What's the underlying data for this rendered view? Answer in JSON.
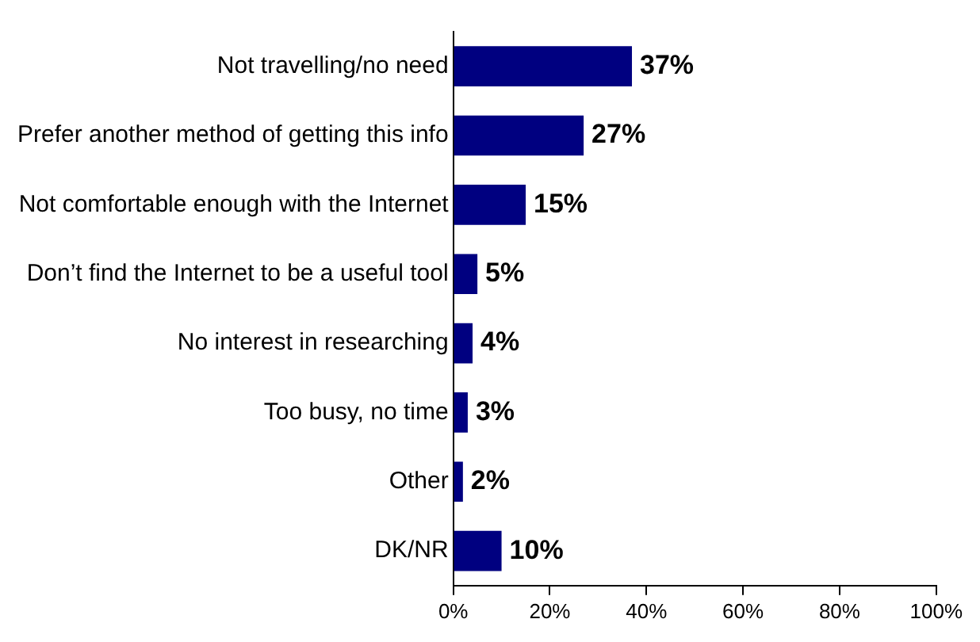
{
  "chart_data": {
    "type": "bar",
    "orientation": "horizontal",
    "categories": [
      "Not travelling/no need",
      "Prefer another method of getting this info",
      "Not comfortable enough with the Internet",
      "Don’t find the Internet to be a useful tool",
      "No interest in researching",
      "Too busy, no time",
      "Other",
      "DK/NR"
    ],
    "values": [
      37,
      27,
      15,
      5,
      4,
      3,
      2,
      10
    ],
    "value_labels": [
      "37%",
      "27%",
      "15%",
      "5%",
      "4%",
      "3%",
      "2%",
      "10%"
    ],
    "color": "#000080",
    "xlim": [
      0,
      100
    ],
    "xticks": [
      {
        "value": 0,
        "label": "0%"
      },
      {
        "value": 20,
        "label": "20%"
      },
      {
        "value": 40,
        "label": "40%"
      },
      {
        "value": 60,
        "label": "60%"
      },
      {
        "value": 80,
        "label": "80%"
      },
      {
        "value": 100,
        "label": "100%"
      }
    ],
    "grid": false,
    "legend": false
  }
}
